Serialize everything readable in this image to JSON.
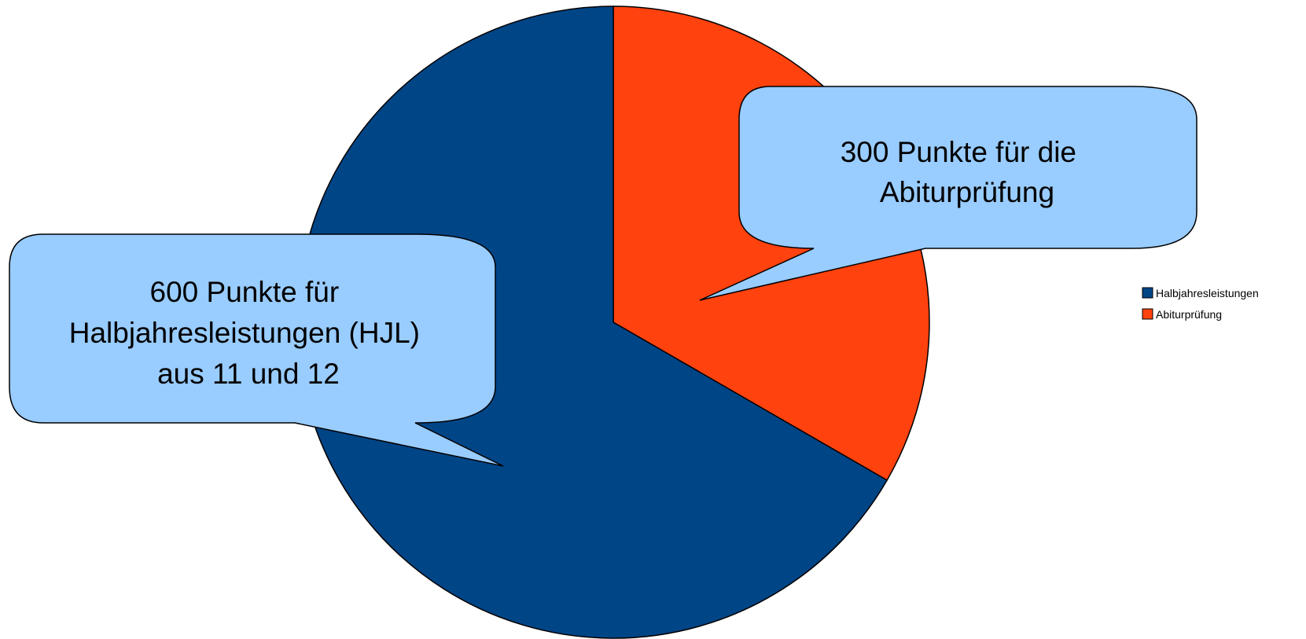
{
  "chart_data": {
    "type": "pie",
    "categories": [
      "Halbjahresleistungen",
      "Abiturprüfung"
    ],
    "values": [
      600,
      300
    ],
    "colors": [
      "#004586",
      "#ff420e"
    ],
    "title": "",
    "legend": {
      "placement": "right",
      "entries": [
        "Halbjahresleistungen",
        "Abiturprüfung"
      ]
    },
    "annotations": [
      {
        "series": "Halbjahresleistungen",
        "lines": [
          "600 Punkte für",
          "Halbjahresleistungen (HJL)",
          "aus 11 und 12"
        ]
      },
      {
        "series": "Abiturprüfung",
        "lines": [
          "300 Punkte für die",
          "Abiturprüfung"
        ]
      }
    ]
  },
  "style": {
    "callout_fill": "#99ccff",
    "outline": "#000000"
  }
}
